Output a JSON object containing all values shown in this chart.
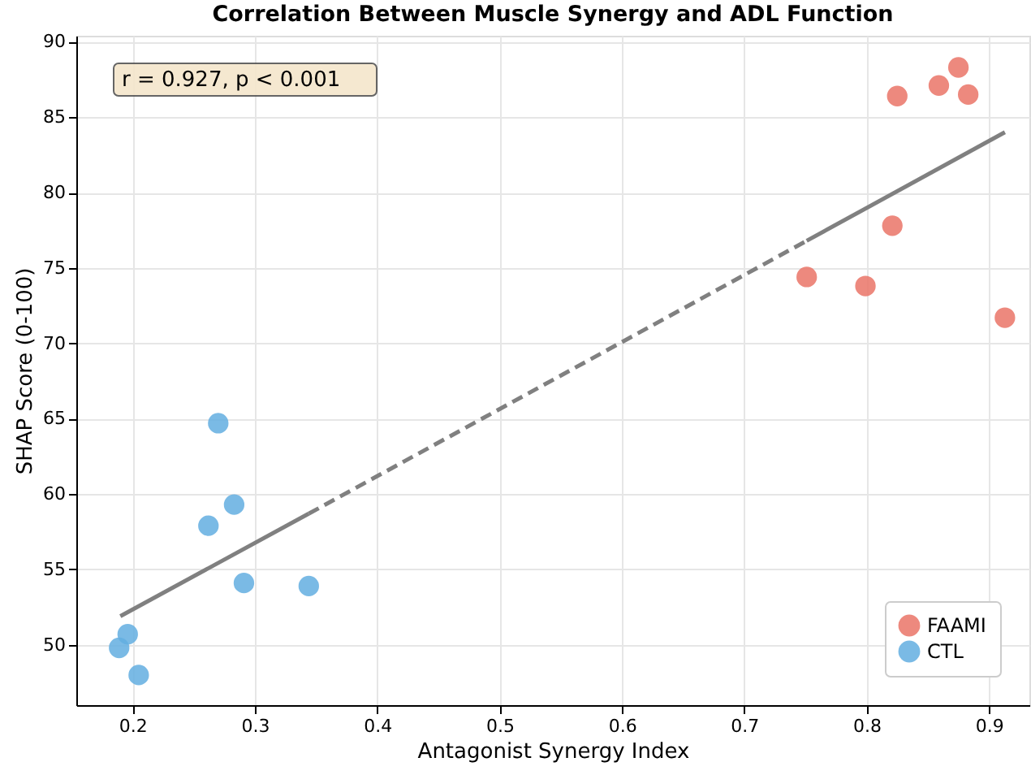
{
  "chart_data": {
    "type": "scatter",
    "title": "Correlation Between Muscle Synergy and ADL Function",
    "xlabel": "Antagonist Synergy Index",
    "ylabel": "SHAP Score (0-100)",
    "series": [
      {
        "name": "FAAMI",
        "color": "#ea7467",
        "marker": "circle",
        "x": [
          0.825,
          0.859,
          0.875,
          0.883,
          0.821,
          0.751,
          0.799,
          0.913
        ],
        "values": [
          86.4,
          87.1,
          88.3,
          86.5,
          77.8,
          74.4,
          73.8,
          71.7
        ]
      },
      {
        "name": "CTL",
        "color": "#63aee0",
        "marker": "circle",
        "x": [
          0.27,
          0.283,
          0.262,
          0.291,
          0.344,
          0.196,
          0.189,
          0.205
        ],
        "values": [
          64.7,
          59.3,
          57.9,
          54.1,
          53.9,
          50.7,
          49.8,
          48.0
        ]
      },
      {
        "type": "line",
        "color": "#808080",
        "line_style": "solid",
        "x": [
          0.19,
          0.344
        ],
        "values": [
          51.9,
          58.7
        ]
      },
      {
        "type": "line",
        "color": "#808080",
        "line_style": "dashed",
        "x": [
          0.344,
          0.751
        ],
        "values": [
          58.7,
          76.8
        ]
      },
      {
        "type": "line",
        "color": "#808080",
        "line_style": "solid",
        "x": [
          0.751,
          0.913
        ],
        "values": [
          76.8,
          84.0
        ]
      }
    ],
    "annotations": [
      "r = 0.927, p < 0.001"
    ],
    "xlim": [
      0.154,
      0.933
    ],
    "xticks": [
      0.2,
      0.3,
      0.4,
      0.5,
      0.6,
      0.7,
      0.8,
      0.9
    ],
    "ylim": [
      46.0,
      90.4
    ],
    "yticks": [
      50,
      55,
      60,
      65,
      70,
      75,
      80,
      85,
      90
    ],
    "grid": true,
    "legend": "bottom right"
  }
}
